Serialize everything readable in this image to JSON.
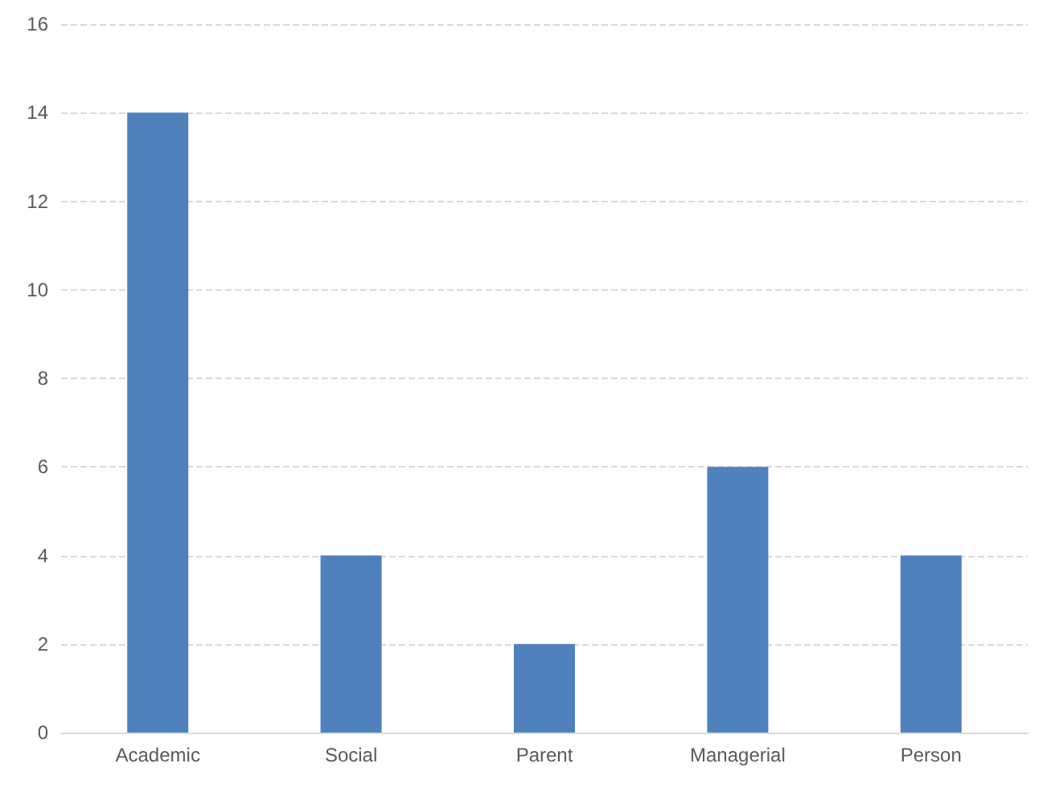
{
  "chart_data": {
    "type": "bar",
    "categories": [
      "Academic",
      "Social",
      "Parent",
      "Managerial",
      "Person"
    ],
    "values": [
      14,
      4,
      2,
      6,
      4
    ],
    "color": "#4f81bd",
    "ylim": [
      0,
      16
    ],
    "yticks": [
      0,
      2,
      4,
      6,
      8,
      10,
      12,
      14,
      16
    ],
    "grid": "y"
  }
}
